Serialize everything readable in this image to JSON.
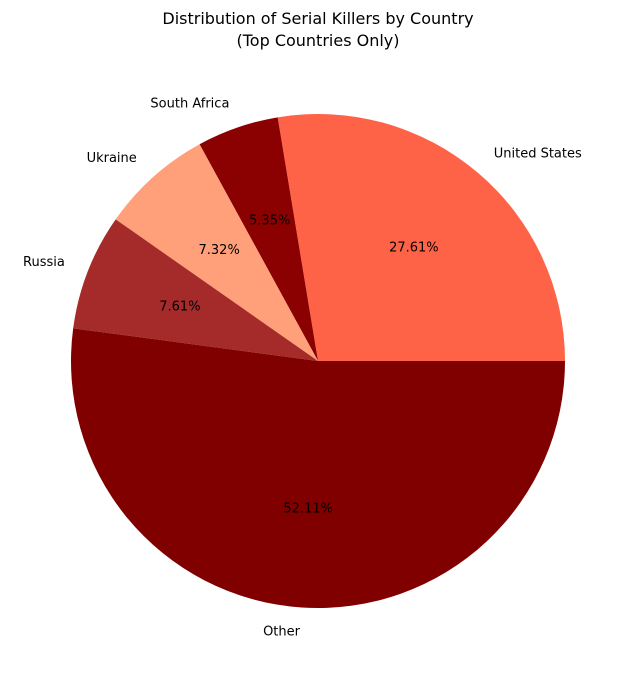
{
  "chart_data": {
    "type": "pie",
    "title": "Distribution of Serial Killers by Country",
    "subtitle": "(Top Countries Only)",
    "slices": [
      {
        "label": "United States",
        "value": 27.61,
        "pct_label": "27.61%",
        "color": "#ff6347"
      },
      {
        "label": "South Africa",
        "value": 5.35,
        "pct_label": "5.35%",
        "color": "#8b0000"
      },
      {
        "label": "Ukraine",
        "value": 7.32,
        "pct_label": "7.32%",
        "color": "#ffa07a"
      },
      {
        "label": "Russia",
        "value": 7.61,
        "pct_label": "7.61%",
        "color": "#a52a2a"
      },
      {
        "label": "Other",
        "value": 52.11,
        "pct_label": "52.11%",
        "color": "#800000"
      }
    ],
    "start_angle_deg": 0,
    "direction": "counterclockwise"
  }
}
